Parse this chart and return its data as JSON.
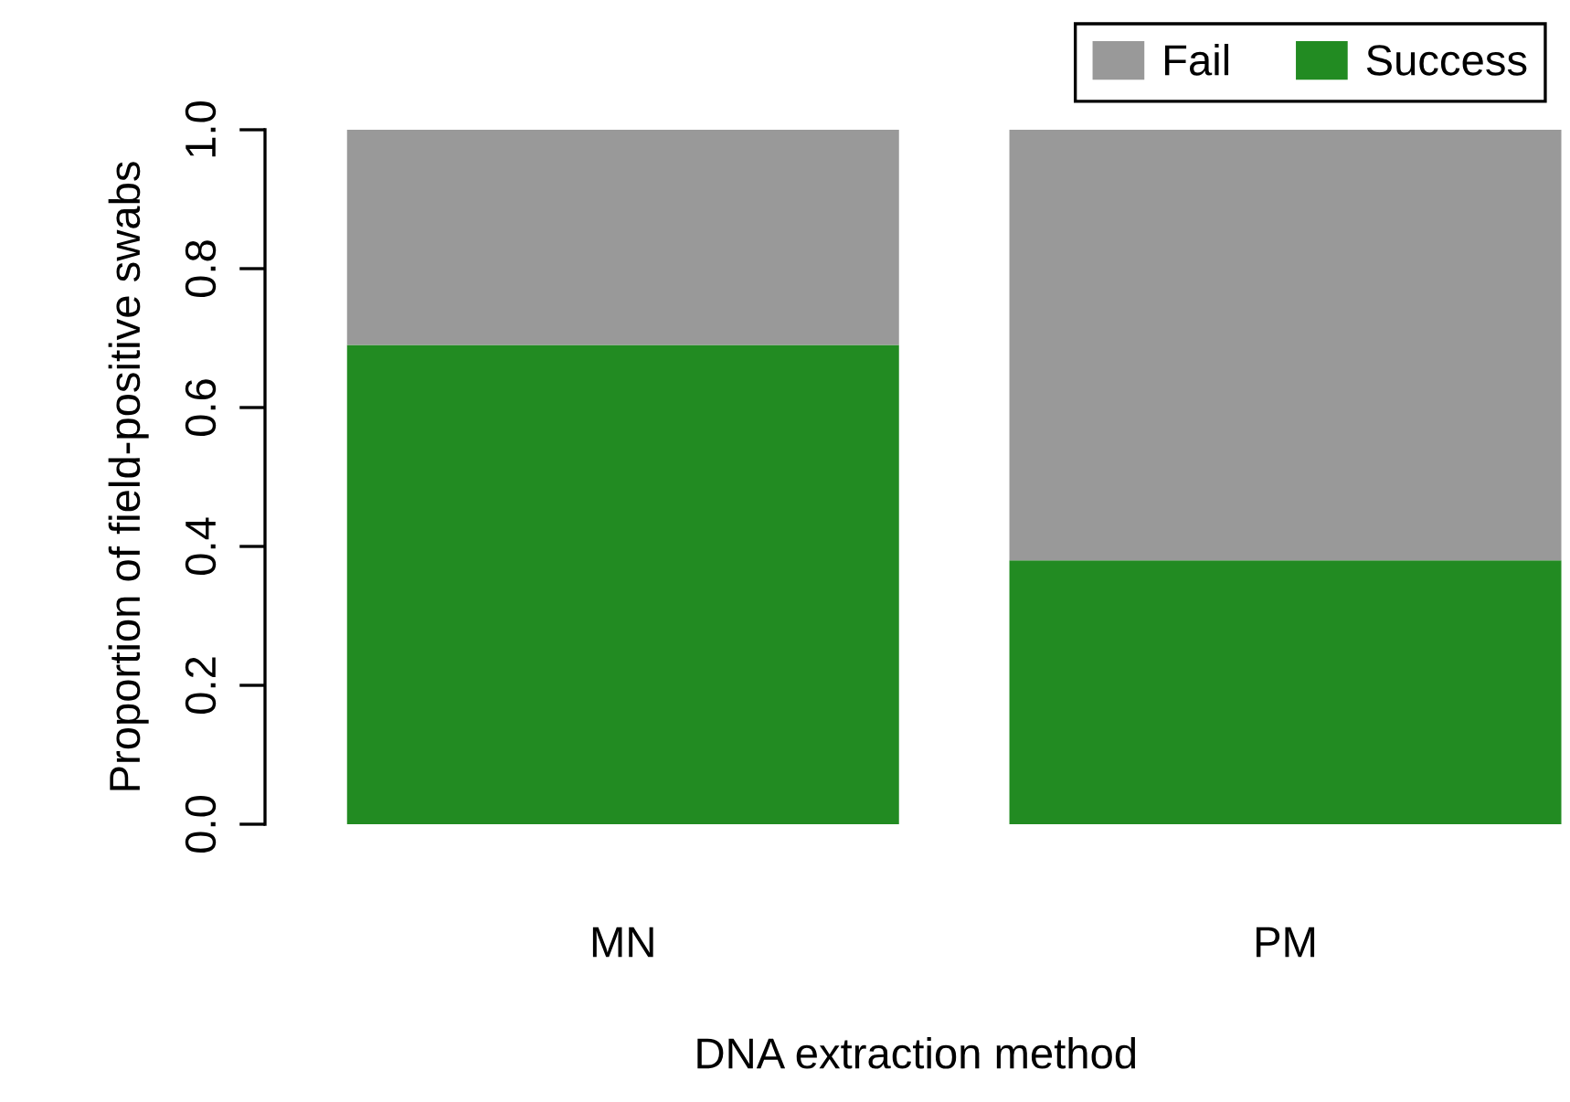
{
  "chart_data": {
    "type": "bar",
    "stacked": true,
    "xlabel": "DNA extraction method",
    "ylabel": "Proportion of field-positive swabs",
    "categories": [
      "MN",
      "PM"
    ],
    "series": [
      {
        "name": "Success",
        "color": "#228b22",
        "values": [
          0.69,
          0.38
        ]
      },
      {
        "name": "Fail",
        "color": "#999999",
        "values": [
          0.31,
          0.62
        ]
      }
    ],
    "ylim": [
      0,
      1
    ],
    "yticks": [
      {
        "value": 0,
        "label": "0.0"
      },
      {
        "value": 0.2,
        "label": "0.2"
      },
      {
        "value": 0.4,
        "label": "0.4"
      },
      {
        "value": 0.6,
        "label": "0.6"
      },
      {
        "value": 0.8,
        "label": "0.8"
      },
      {
        "value": 1.0,
        "label": "1.0"
      }
    ],
    "grid": false,
    "legend": "top right"
  }
}
